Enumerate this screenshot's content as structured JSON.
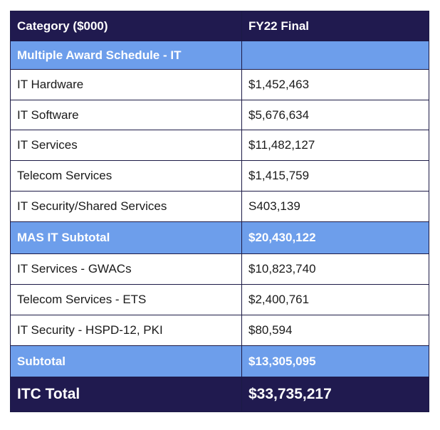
{
  "table": {
    "header": {
      "category": "Category ($000)",
      "fy22": "FY22 Final"
    },
    "section_title": "Multiple Award Schedule - IT",
    "section_value": "",
    "mas_rows": [
      {
        "label": "IT Hardware",
        "value": "$1,452,463"
      },
      {
        "label": "IT Software",
        "value": "$5,676,634"
      },
      {
        "label": "IT Services",
        "value": "$11,482,127"
      },
      {
        "label": "Telecom Services",
        "value": "$1,415,759"
      },
      {
        "label": "IT Security/Shared Services",
        "value": "S403,139"
      }
    ],
    "mas_subtotal": {
      "label": "MAS IT Subtotal",
      "value": "$20,430,122"
    },
    "other_rows": [
      {
        "label": "IT Services - GWACs",
        "value": "$10,823,740"
      },
      {
        "label": "Telecom Services - ETS",
        "value": "$2,400,761"
      },
      {
        "label": "IT Security - HSPD-12, PKI",
        "value": "$80,594"
      }
    ],
    "subtotal": {
      "label": "Subtotal",
      "value": "$13,305,095"
    },
    "total": {
      "label": "ITC Total",
      "value": "$33,735,217"
    }
  },
  "colors": {
    "header_bg": "#201a4f",
    "section_bg": "#6d9eeb",
    "border": "#1c1a46"
  }
}
